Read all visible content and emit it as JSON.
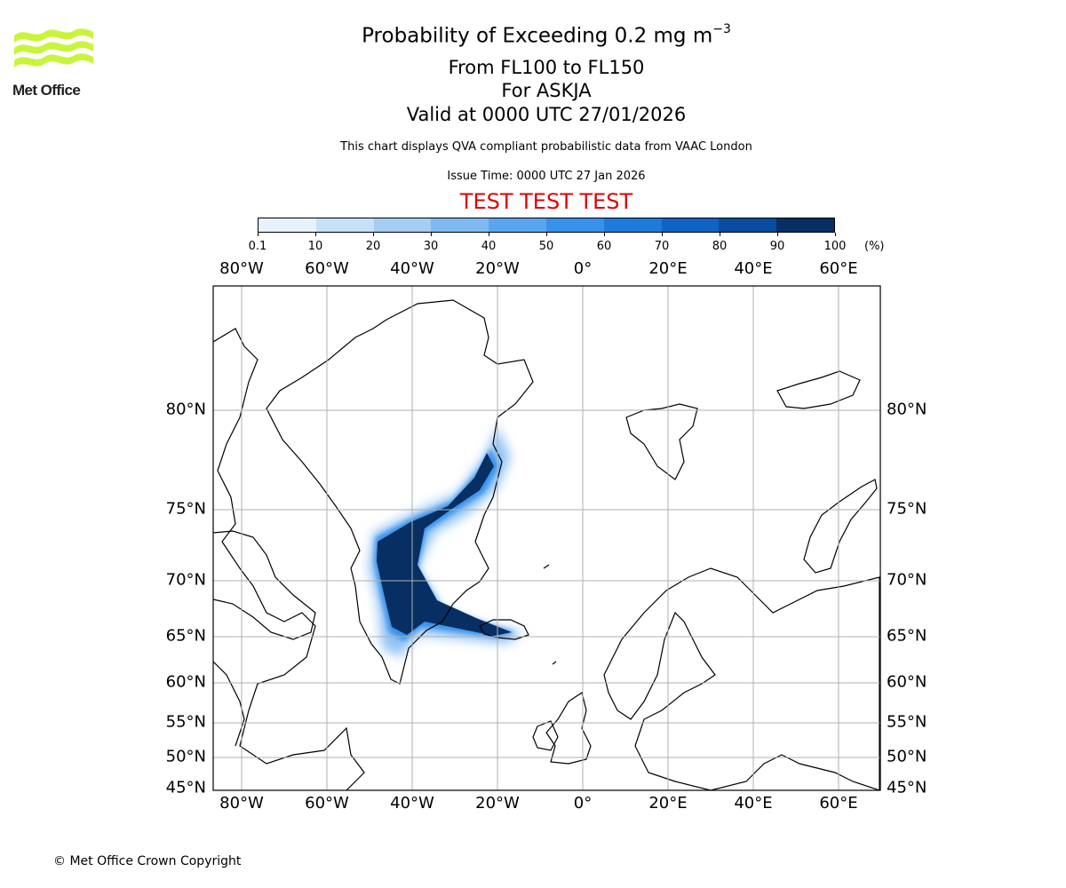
{
  "logo": {
    "name": "Met Office",
    "brand_color": "#c8f53c"
  },
  "title": {
    "main": "Probability of Exceeding 0.2 mg m",
    "main_sup": "−3",
    "range": "From FL100 to FL150",
    "for": "For ASKJA",
    "valid": "Valid at 0000 UTC 27/01/2026",
    "note": "This chart displays QVA compliant probabilistic data from VAAC London",
    "issue": "Issue Time: 0000 UTC 27 Jan 2026",
    "test": "TEST TEST TEST"
  },
  "colorbar": {
    "unit": "(%)",
    "ticks": [
      "0.1",
      "10",
      "20",
      "30",
      "40",
      "50",
      "60",
      "70",
      "80",
      "90",
      "100"
    ],
    "colors": [
      "#e8f2fd",
      "#c6e0f8",
      "#a4cdf4",
      "#7fb9f2",
      "#5aa5f0",
      "#3891ea",
      "#1e7bdc",
      "#0f63c2",
      "#0a4da0",
      "#072f63"
    ]
  },
  "map": {
    "lon_labels": [
      "80°W",
      "60°W",
      "40°W",
      "20°W",
      "0°",
      "20°E",
      "40°E",
      "60°E"
    ],
    "lat_labels": [
      "80°N",
      "75°N",
      "70°N",
      "65°N",
      "60°N",
      "55°N",
      "50°N",
      "45°N"
    ],
    "region": "ASKJA ash plume, Greenland / Iceland / North Atlantic"
  },
  "footer": {
    "copyright": "© Met Office Crown Copyright"
  }
}
